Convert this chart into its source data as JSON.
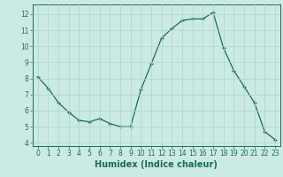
{
  "x": [
    0,
    1,
    2,
    3,
    4,
    5,
    6,
    7,
    8,
    9,
    10,
    11,
    12,
    13,
    14,
    15,
    16,
    17,
    18,
    19,
    20,
    21,
    22,
    23
  ],
  "y": [
    8.1,
    7.4,
    6.5,
    5.9,
    5.4,
    5.3,
    5.5,
    5.2,
    5.0,
    5.0,
    7.3,
    8.9,
    10.5,
    11.1,
    11.6,
    11.7,
    11.7,
    12.1,
    9.9,
    8.5,
    7.5,
    6.5,
    4.7,
    4.2
  ],
  "line_color": "#1a6b5a",
  "marker": "+",
  "marker_size": 3,
  "background_color": "#cceae4",
  "grid_color": "#aed4cc",
  "xlabel": "Humidex (Indice chaleur)",
  "xlim": [
    -0.5,
    23.5
  ],
  "ylim": [
    3.8,
    12.6
  ],
  "xticks": [
    0,
    1,
    2,
    3,
    4,
    5,
    6,
    7,
    8,
    9,
    10,
    11,
    12,
    13,
    14,
    15,
    16,
    17,
    18,
    19,
    20,
    21,
    22,
    23
  ],
  "yticks": [
    4,
    5,
    6,
    7,
    8,
    9,
    10,
    11,
    12
  ],
  "tick_color": "#1a6b5a",
  "label_fontsize": 5.5,
  "xlabel_fontsize": 7,
  "axis_color": "#1a6b5a",
  "linewidth": 0.9,
  "markeredgewidth": 0.9
}
